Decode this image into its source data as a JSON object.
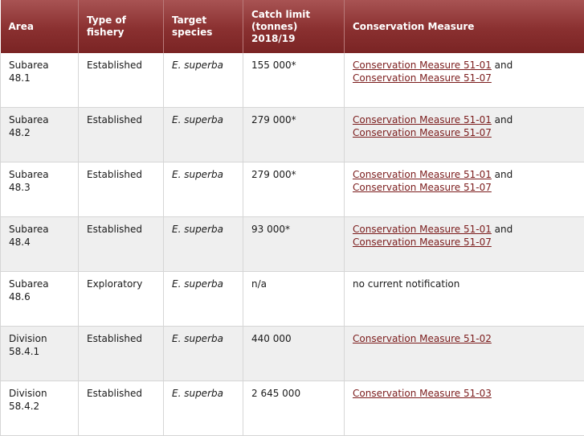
{
  "headers": {
    "area": "Area",
    "fishery_type": "Type of fishery",
    "target_species": "Target species",
    "catch_limit": "Catch limit (tonnes) 2018/19",
    "conservation_measure": "Conservation Measure"
  },
  "rows": [
    {
      "area": "Subarea 48.1",
      "type": "Established",
      "species": "E. superba",
      "limit": "155 000*",
      "cm1": "Conservation Measure 51-01",
      "connector": " and ",
      "cm2": "Conservation Measure 51-07",
      "note": ""
    },
    {
      "area": "Subarea 48.2",
      "type": "Established",
      "species": "E. superba",
      "limit": "279 000*",
      "cm1": "Conservation Measure 51-01",
      "connector": " and ",
      "cm2": "Conservation Measure 51-07",
      "note": ""
    },
    {
      "area": "Subarea 48.3",
      "type": "Established",
      "species": "E. superba",
      "limit": "279 000*",
      "cm1": "Conservation Measure 51-01",
      "connector": " and ",
      "cm2": "Conservation Measure 51-07",
      "note": ""
    },
    {
      "area": "Subarea 48.4",
      "type": "Established",
      "species": "E. superba",
      "limit": "93 000*",
      "cm1": "Conservation Measure 51-01",
      "connector": " and ",
      "cm2": "Conservation Measure 51-07",
      "note": ""
    },
    {
      "area": "Subarea 48.6",
      "type": "Exploratory",
      "species": "E. superba",
      "limit": "n/a",
      "cm1": "",
      "connector": "",
      "cm2": "",
      "note": "no current notification"
    },
    {
      "area": "Division 58.4.1",
      "type": "Established",
      "species": "E. superba",
      "limit": "440 000",
      "cm1": "Conservation Measure 51-02",
      "connector": "",
      "cm2": "",
      "note": ""
    },
    {
      "area": "Division 58.4.2",
      "type": "Established",
      "species": "E. superba",
      "limit": "2 645 000",
      "cm1": "Conservation Measure 51-03",
      "connector": "",
      "cm2": "",
      "note": ""
    }
  ],
  "colors": {
    "header_bg": "#8a3030",
    "link": "#7b1c1c",
    "row_alt": "#efefef"
  }
}
